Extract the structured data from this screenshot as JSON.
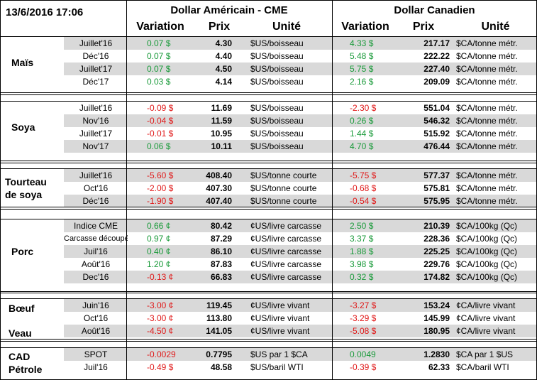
{
  "header": {
    "timestamp": "13/6/2016 17:06",
    "usd_group": "Dollar Américain - CME",
    "cad_group": "Dollar Canadien",
    "variation": "Variation",
    "prix": "Prix",
    "unite": "Unité"
  },
  "colors": {
    "positive": "#1a9a3a",
    "negative": "#e01818",
    "shade": "#d9d9d9"
  },
  "sections": [
    {
      "label": [
        "Maïs"
      ],
      "rows": [
        {
          "contract": "Juillet'16",
          "usd_var": "0.07 $",
          "usd_price": "4.30",
          "usd_unit": "$US/boisseau",
          "cad_var": "4.33 $",
          "cad_price": "217.17",
          "cad_unit": "$CA/tonne métr."
        },
        {
          "contract": "Déc'16",
          "usd_var": "0.07 $",
          "usd_price": "4.40",
          "usd_unit": "$US/boisseau",
          "cad_var": "5.48 $",
          "cad_price": "222.22",
          "cad_unit": "$CA/tonne métr."
        },
        {
          "contract": "Juillet'17",
          "usd_var": "0.07 $",
          "usd_price": "4.50",
          "usd_unit": "$US/boisseau",
          "cad_var": "5.75 $",
          "cad_price": "227.40",
          "cad_unit": "$CA/tonne métr."
        },
        {
          "contract": "Déc'17",
          "usd_var": "0.03 $",
          "usd_price": "4.14",
          "usd_unit": "$US/boisseau",
          "cad_var": "2.16 $",
          "cad_price": "209.09",
          "cad_unit": "$CA/tonne métr."
        }
      ]
    },
    {
      "label": [
        "Soya"
      ],
      "rows": [
        {
          "contract": "Juillet'16",
          "usd_var": "-0.09 $",
          "usd_price": "11.69",
          "usd_unit": "$US/boisseau",
          "cad_var": "-2.30 $",
          "cad_price": "551.04",
          "cad_unit": "$CA/tonne métr."
        },
        {
          "contract": "Nov'16",
          "usd_var": "-0.04 $",
          "usd_price": "11.59",
          "usd_unit": "$US/boisseau",
          "cad_var": "0.26 $",
          "cad_price": "546.32",
          "cad_unit": "$CA/tonne métr."
        },
        {
          "contract": "Juillet'17",
          "usd_var": "-0.01 $",
          "usd_price": "10.95",
          "usd_unit": "$US/boisseau",
          "cad_var": "1.44 $",
          "cad_price": "515.92",
          "cad_unit": "$CA/tonne métr."
        },
        {
          "contract": "Nov'17",
          "usd_var": "0.06 $",
          "usd_price": "10.11",
          "usd_unit": "$US/boisseau",
          "cad_var": "4.70 $",
          "cad_price": "476.44",
          "cad_unit": "$CA/tonne métr."
        }
      ]
    },
    {
      "label": [
        "Tourteau",
        "de soya"
      ],
      "rows": [
        {
          "contract": "Juillet'16",
          "usd_var": "-5.60 $",
          "usd_price": "408.40",
          "usd_unit": "$US/tonne courte",
          "cad_var": "-5.75 $",
          "cad_price": "577.37",
          "cad_unit": "$CA/tonne métr."
        },
        {
          "contract": "Oct'16",
          "usd_var": "-2.00 $",
          "usd_price": "407.30",
          "usd_unit": "$US/tonne courte",
          "cad_var": "-0.68 $",
          "cad_price": "575.81",
          "cad_unit": "$CA/tonne métr."
        },
        {
          "contract": "Déc'16",
          "usd_var": "-1.90 $",
          "usd_price": "407.40",
          "usd_unit": "$US/tonne courte",
          "cad_var": "-0.54 $",
          "cad_price": "575.95",
          "cad_unit": "$CA/tonne métr."
        }
      ]
    },
    {
      "label": [
        "Porc"
      ],
      "rows": [
        {
          "contract": "Indice CME",
          "usd_var": "0.66 ¢",
          "usd_price": "80.42",
          "usd_unit": "¢US/livre carcasse",
          "cad_var": "2.50 $",
          "cad_price": "210.39",
          "cad_unit": "$CA/100kg (Qc)"
        },
        {
          "contract": "Carcasse découpée",
          "usd_var": "0.97 ¢",
          "usd_price": "87.29",
          "usd_unit": "¢US/livre carcasse",
          "cad_var": "3.37 $",
          "cad_price": "228.36",
          "cad_unit": "$CA/100kg (Qc)"
        },
        {
          "contract": "Juil'16",
          "usd_var": "0.40 ¢",
          "usd_price": "86.10",
          "usd_unit": "¢US/livre carcasse",
          "cad_var": "1.88 $",
          "cad_price": "225.25",
          "cad_unit": "$CA/100kg (Qc)"
        },
        {
          "contract": "Août'16",
          "usd_var": "1.20 ¢",
          "usd_price": "87.83",
          "usd_unit": "¢US/livre carcasse",
          "cad_var": "3.98 $",
          "cad_price": "229.76",
          "cad_unit": "$CA/100kg (Qc)"
        },
        {
          "contract": "Dec'16",
          "usd_var": "-0.13 ¢",
          "usd_price": "66.83",
          "usd_unit": "¢US/livre carcasse",
          "cad_var": "0.32 $",
          "cad_price": "174.82",
          "cad_unit": "$CA/100kg (Qc)"
        }
      ]
    },
    {
      "label": [
        "Bœuf",
        "",
        "Veau"
      ],
      "rows": [
        {
          "contract": "Juin'16",
          "usd_var": "-3.00 ¢",
          "usd_price": "119.45",
          "usd_unit": "¢US/livre vivant",
          "cad_var": "-3.27 $",
          "cad_price": "153.24",
          "cad_unit": "¢CA/livre vivant"
        },
        {
          "contract": "Oct'16",
          "usd_var": "-3.00 ¢",
          "usd_price": "113.80",
          "usd_unit": "¢US/livre vivant",
          "cad_var": "-3.29 $",
          "cad_price": "145.99",
          "cad_unit": "¢CA/livre vivant"
        },
        {
          "contract": "Août'16",
          "usd_var": "-4.50 ¢",
          "usd_price": "141.05",
          "usd_unit": "¢US/livre vivant",
          "cad_var": "-5.08 $",
          "cad_price": "180.95",
          "cad_unit": "¢CA/livre vivant"
        }
      ]
    },
    {
      "label": [
        "CAD",
        "Pétrole"
      ],
      "rows": [
        {
          "contract": "SPOT",
          "usd_var": "-0.0029",
          "usd_price": "0.7795",
          "usd_unit": "$US par 1 $CA",
          "cad_var": "0.0049",
          "cad_price": "1.2830",
          "cad_unit": "$CA par 1 $US"
        },
        {
          "contract": "Juil'16",
          "usd_var": "-0.49 $",
          "usd_price": "48.58",
          "usd_unit": "$US/baril WTI",
          "cad_var": "-0.39 $",
          "cad_price": "62.33",
          "cad_unit": "$CA/baril WTI"
        }
      ]
    }
  ]
}
